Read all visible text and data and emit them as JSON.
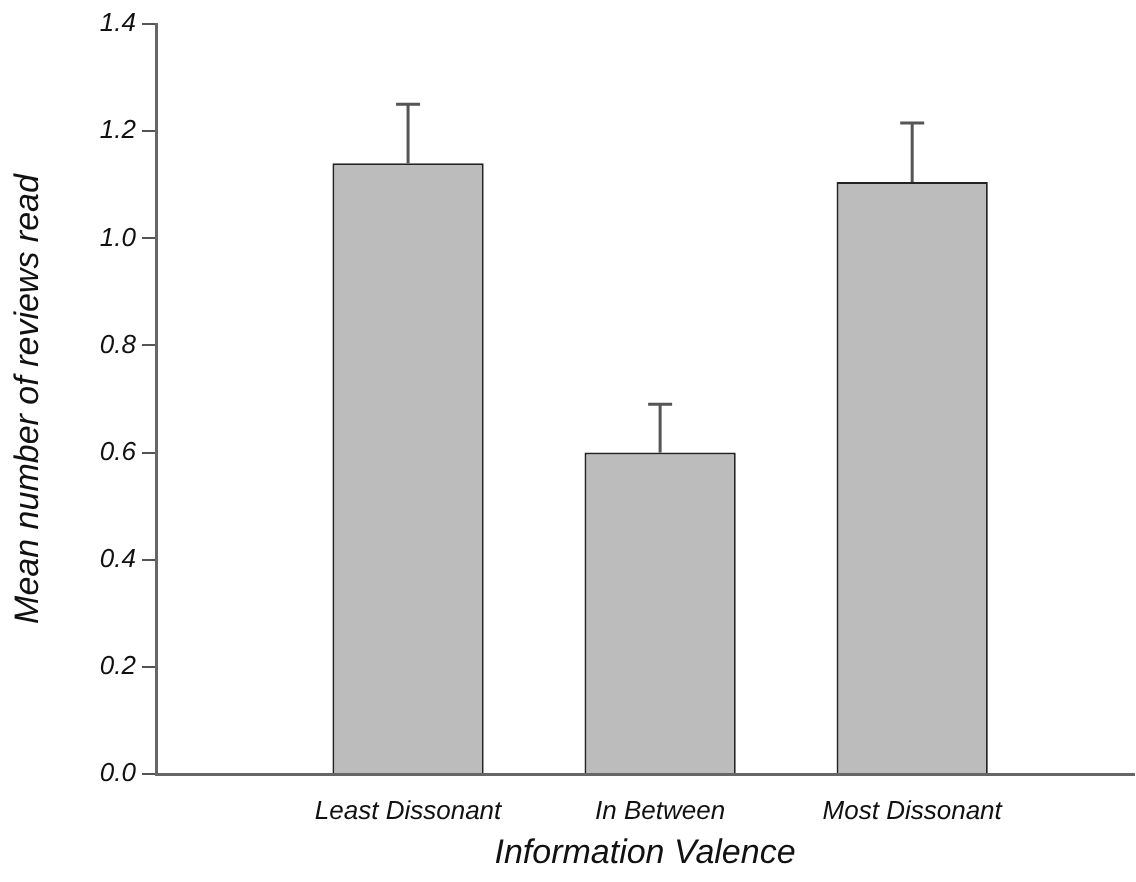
{
  "chart_data": {
    "type": "bar",
    "xlabel": "Information Valence",
    "ylabel": "Mean number of reviews read",
    "categories": [
      "Least Dissonant",
      "In Between",
      "Most Dissonant"
    ],
    "values": [
      1.14,
      0.6,
      1.105
    ],
    "color": "#bcbcbc",
    "errors": [
      [
        1.14,
        1.25
      ],
      [
        0.6,
        0.69
      ],
      [
        1.105,
        1.215
      ]
    ],
    "ylim": [
      0,
      1.4
    ],
    "yticks": [
      {
        "value": 0,
        "label": "0.0"
      },
      {
        "value": 0.2,
        "label": "0.2"
      },
      {
        "value": 0.4,
        "label": "0.4"
      },
      {
        "value": 0.6,
        "label": "0.6"
      },
      {
        "value": 0.8,
        "label": "0.8"
      },
      {
        "value": 1,
        "label": "1.0"
      },
      {
        "value": 1.2,
        "label": "1.2"
      },
      {
        "value": 1.4,
        "label": "1.4"
      }
    ],
    "grid": false,
    "legend": false
  }
}
